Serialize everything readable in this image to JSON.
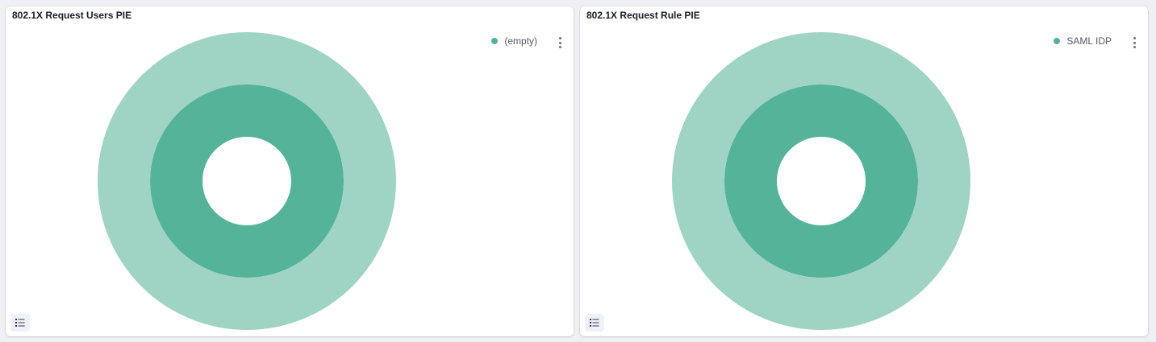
{
  "colors": {
    "outer": "#9fd3c4",
    "inner": "#54b399",
    "legend_dot": "#54b399"
  },
  "panels": [
    {
      "title": "802.1X Request Users PIE",
      "legend": "(empty)",
      "chart_data": {
        "type": "pie",
        "rings": [
          {
            "level": "inner",
            "slices": [
              {
                "label": "",
                "value": 100
              }
            ]
          },
          {
            "level": "outer",
            "slices": [
              {
                "label": "(empty)",
                "value": 100
              }
            ]
          }
        ]
      }
    },
    {
      "title": "802.1X Request Rule PIE",
      "legend": "SAML IDP",
      "chart_data": {
        "type": "pie",
        "rings": [
          {
            "level": "inner",
            "slices": [
              {
                "label": "",
                "value": 100
              }
            ]
          },
          {
            "level": "outer",
            "slices": [
              {
                "label": "SAML IDP",
                "value": 100
              }
            ]
          }
        ]
      }
    }
  ],
  "icons": {
    "panel_menu": "vertical-ellipsis-icon",
    "legend_toggle": "list-icon"
  }
}
